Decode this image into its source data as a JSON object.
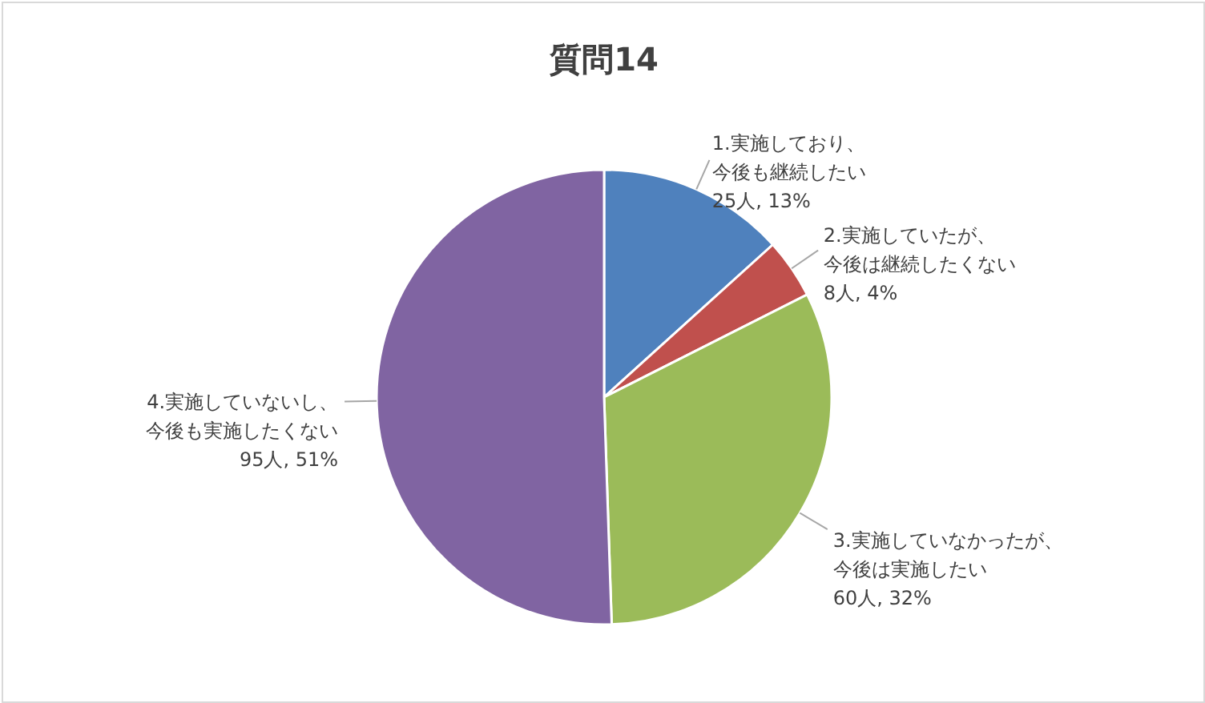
{
  "chart_data": {
    "type": "pie",
    "title": "質問14",
    "categories": [
      "1.実施しており、今後も継続したい",
      "2.実施していたが、今後は継続したくない",
      "3.実施していなかったが、今後は実施したい",
      "4.実施していないし、今後も実施したくない"
    ],
    "values": [
      25,
      8,
      60,
      95
    ],
    "value_labels": [
      "25人, 13%",
      "8人, 4%",
      "60人, 32%",
      "95人, 51%"
    ],
    "colors": [
      "#4f81bd",
      "#c0504d",
      "#9bbb59",
      "#8064a2"
    ]
  }
}
